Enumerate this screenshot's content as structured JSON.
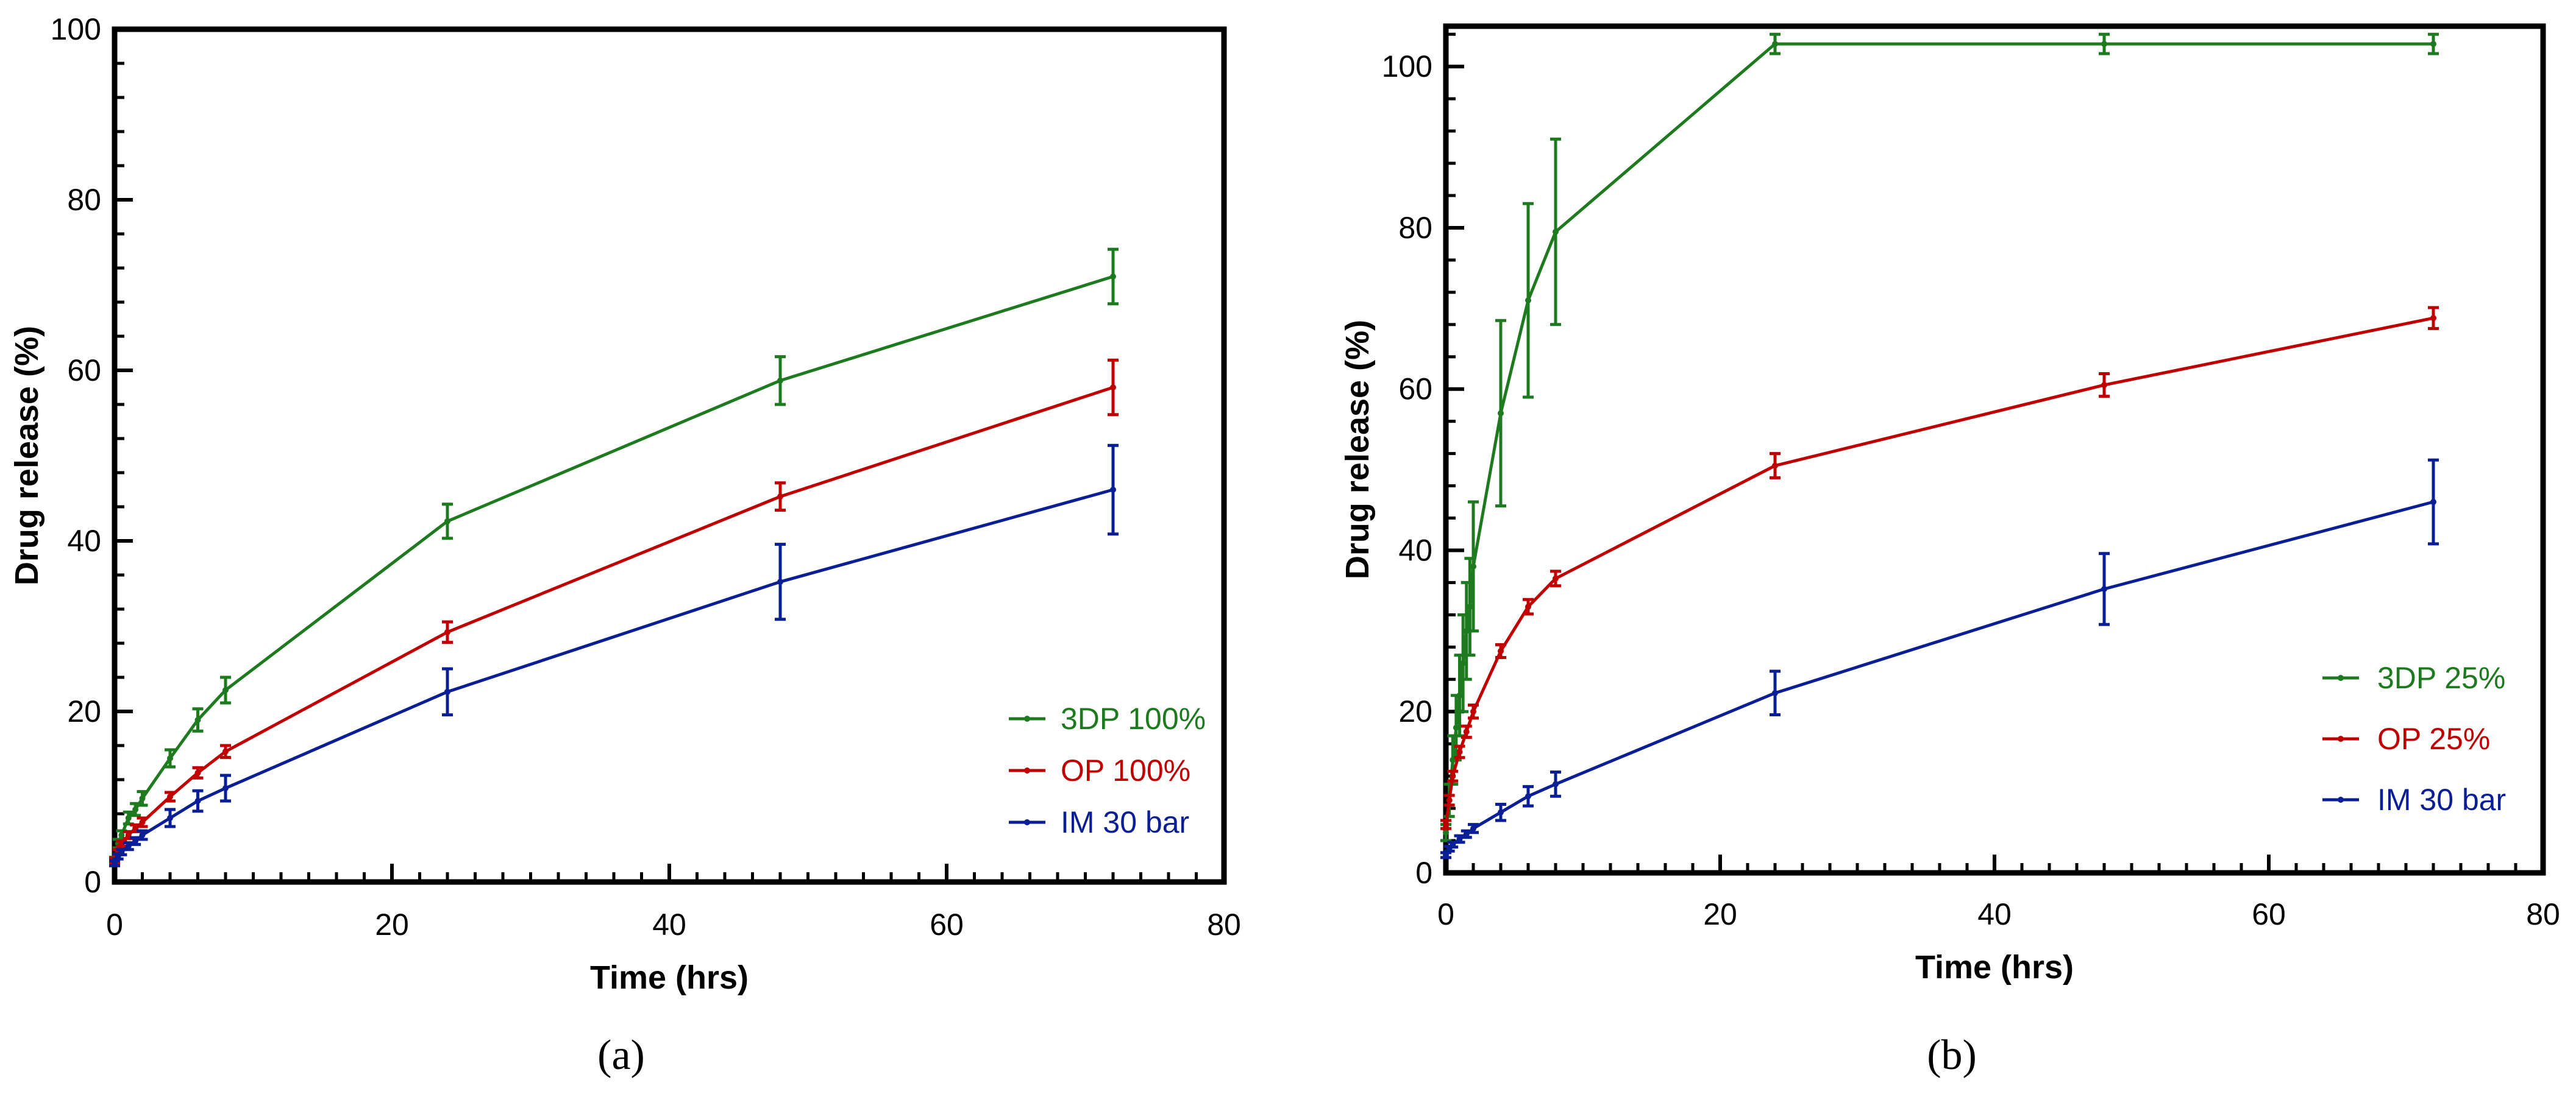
{
  "chart_data": [
    {
      "type": "line",
      "panel_label": "(a)",
      "xlabel": "Time (hrs)",
      "ylabel": "Drug release (%)",
      "xlim": [
        0,
        80
      ],
      "ylim": [
        0,
        100
      ],
      "xticks": [
        0,
        20,
        40,
        60,
        80
      ],
      "yticks": [
        0,
        20,
        40,
        60,
        80,
        100
      ],
      "legend_position": "bottom-right",
      "series": [
        {
          "name": "3DP 100%",
          "color": "#1e7a1e",
          "x": [
            0,
            0.25,
            0.5,
            1,
            1.5,
            2,
            4,
            6,
            8,
            24,
            48,
            72
          ],
          "y": [
            2.5,
            4.5,
            5.5,
            7.5,
            8.5,
            9.8,
            14.5,
            19,
            22.5,
            42.3,
            58.8,
            71
          ],
          "err": [
            0.4,
            0.5,
            0.5,
            0.7,
            0.7,
            0.8,
            1.0,
            1.3,
            1.5,
            2.0,
            2.8,
            3.2
          ]
        },
        {
          "name": "OP 100%",
          "color": "#c00000",
          "x": [
            0,
            0.25,
            0.5,
            1,
            1.5,
            2,
            4,
            6,
            8,
            24,
            48,
            72
          ],
          "y": [
            2.5,
            3.5,
            4.5,
            5.5,
            6.3,
            7,
            10,
            12.8,
            15.3,
            29.3,
            45.2,
            58
          ],
          "err": [
            0.3,
            0.3,
            0.3,
            0.4,
            0.4,
            0.5,
            0.5,
            0.6,
            0.7,
            1.2,
            1.6,
            3.2
          ]
        },
        {
          "name": "IM 30 bar",
          "color": "#0a1e96",
          "x": [
            0,
            0.25,
            0.5,
            1,
            1.5,
            2,
            4,
            6,
            8,
            24,
            48,
            72
          ],
          "y": [
            2.2,
            3,
            3.5,
            4.2,
            4.8,
            5.5,
            7.5,
            9.5,
            11,
            22.3,
            35.2,
            46
          ],
          "err": [
            0.3,
            0.3,
            0.3,
            0.4,
            0.4,
            0.5,
            1.0,
            1.2,
            1.5,
            2.7,
            4.4,
            5.2
          ]
        }
      ]
    },
    {
      "type": "line",
      "panel_label": "(b)",
      "xlabel": "Time (hrs)",
      "ylabel": "Drug release (%)",
      "xlim": [
        0,
        80
      ],
      "ylim": [
        0,
        105
      ],
      "xticks": [
        0,
        20,
        40,
        60,
        80
      ],
      "yticks": [
        0,
        20,
        40,
        60,
        80,
        100
      ],
      "legend_position": "bottom-right",
      "series": [
        {
          "name": "3DP 25%",
          "color": "#1e7a1e",
          "x": [
            0,
            0.25,
            0.5,
            0.75,
            1,
            1.25,
            1.5,
            1.75,
            2,
            4,
            6,
            8,
            24,
            48,
            72
          ],
          "y": [
            5,
            9,
            14,
            18,
            22,
            26,
            30,
            33,
            38,
            57,
            71,
            79.5,
            102.8,
            102.8,
            102.8
          ],
          "err": [
            1,
            2,
            3,
            4,
            5,
            6,
            6,
            6,
            8,
            11.5,
            12,
            11.5,
            1.2,
            1.2,
            1.2
          ]
        },
        {
          "name": "OP 25%",
          "color": "#c00000",
          "x": [
            0,
            0.25,
            0.5,
            1,
            1.5,
            2,
            4,
            6,
            8,
            24,
            48,
            72
          ],
          "y": [
            6,
            9,
            12,
            15,
            17.5,
            20,
            27.5,
            33,
            36.5,
            50.5,
            60.5,
            68.8
          ],
          "err": [
            0.5,
            0.6,
            0.6,
            0.7,
            0.7,
            0.8,
            0.8,
            0.9,
            0.9,
            1.5,
            1.4,
            1.3
          ]
        },
        {
          "name": "IM 30 bar",
          "color": "#0a1e96",
          "x": [
            0,
            0.25,
            0.5,
            1,
            1.5,
            2,
            4,
            6,
            8,
            24,
            48,
            72
          ],
          "y": [
            2.2,
            3,
            3.5,
            4.2,
            4.8,
            5.5,
            7.5,
            9.5,
            11,
            22.3,
            35.2,
            46
          ],
          "err": [
            0.3,
            0.3,
            0.3,
            0.4,
            0.4,
            0.5,
            1.0,
            1.2,
            1.5,
            2.7,
            4.4,
            5.2
          ]
        }
      ]
    }
  ]
}
